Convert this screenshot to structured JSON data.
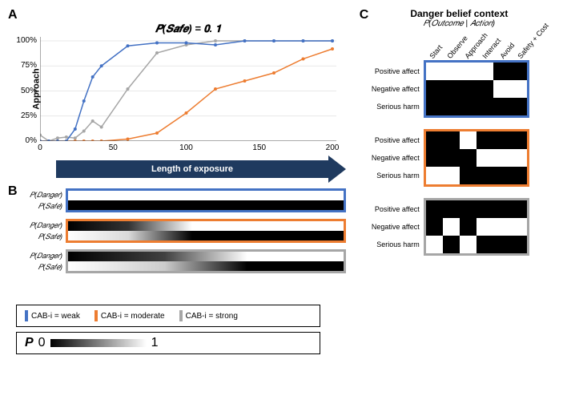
{
  "colors": {
    "weak": "#4472c4",
    "moderate": "#ed7d31",
    "strong": "#a6a6a6",
    "arrow": "#1f3a5f",
    "black": "#000000",
    "white": "#ffffff",
    "grid": "#e0e0e0"
  },
  "panelA": {
    "label": "A",
    "title": "P(Safe) = 0.1",
    "ylabel": "Approach",
    "xlim": [
      0,
      200
    ],
    "ylim": [
      0,
      100
    ],
    "yticks": [
      {
        "v": 0,
        "l": "0%"
      },
      {
        "v": 25,
        "l": "25%"
      },
      {
        "v": 50,
        "l": "50%"
      },
      {
        "v": 75,
        "l": "75%"
      },
      {
        "v": 100,
        "l": "100%"
      }
    ],
    "xticks": [
      {
        "v": 0,
        "l": "0"
      },
      {
        "v": 50,
        "l": "50"
      },
      {
        "v": 100,
        "l": "100"
      },
      {
        "v": 150,
        "l": "150"
      },
      {
        "v": 200,
        "l": "200"
      }
    ],
    "marker_radius": 2.0,
    "line_width": 1.5,
    "series": {
      "weak": {
        "x": [
          0,
          6,
          12,
          18,
          24,
          30,
          36,
          42,
          60,
          80,
          100,
          120,
          140,
          160,
          180,
          200
        ],
        "y": [
          0,
          0,
          0,
          0,
          12,
          40,
          64,
          75,
          95,
          98,
          98,
          96,
          100,
          100,
          100,
          100
        ]
      },
      "moderate": {
        "x": [
          0,
          6,
          12,
          18,
          24,
          30,
          36,
          42,
          60,
          80,
          100,
          120,
          140,
          160,
          180,
          200
        ],
        "y": [
          0,
          0,
          0,
          0,
          0,
          0,
          0,
          0,
          2,
          8,
          28,
          52,
          60,
          68,
          82,
          92
        ]
      },
      "strong": {
        "x": [
          0,
          6,
          12,
          18,
          24,
          30,
          36,
          42,
          60,
          80,
          100,
          120,
          140,
          160,
          180,
          200
        ],
        "y": [
          6,
          0,
          3,
          4,
          3,
          10,
          20,
          14,
          52,
          88,
          96,
          100,
          100,
          100,
          100,
          100
        ]
      }
    }
  },
  "arrow": {
    "text": "Length of exposure"
  },
  "panelB": {
    "label": "B",
    "rowLabels": [
      "P(Danger)",
      "P(Safe)"
    ],
    "groups": [
      {
        "border": "weak",
        "danger": {
          "type": "solid",
          "value": 1
        },
        "safe": {
          "type": "solid",
          "value": 0
        }
      },
      {
        "border": "moderate",
        "danger": {
          "type": "gradient",
          "stops": [
            [
              0,
              0
            ],
            [
              0.22,
              0.2
            ],
            [
              0.45,
              1
            ],
            [
              1,
              1
            ]
          ]
        },
        "safe": {
          "type": "gradient",
          "stops": [
            [
              0,
              1
            ],
            [
              0.22,
              0.85
            ],
            [
              0.45,
              0
            ],
            [
              1,
              0
            ]
          ]
        }
      },
      {
        "border": "strong",
        "danger": {
          "type": "gradient",
          "stops": [
            [
              0,
              0
            ],
            [
              0.35,
              0.25
            ],
            [
              0.65,
              1
            ],
            [
              1,
              1
            ]
          ]
        },
        "safe": {
          "type": "gradient",
          "stops": [
            [
              0,
              1
            ],
            [
              0.35,
              0.8
            ],
            [
              0.65,
              0
            ],
            [
              1,
              0
            ]
          ]
        }
      }
    ]
  },
  "legend": {
    "items": [
      {
        "color": "weak",
        "label": "CAB-i = weak"
      },
      {
        "color": "moderate",
        "label": "CAB-i = moderate"
      },
      {
        "color": "strong",
        "label": "CAB-i = strong"
      }
    ],
    "pLabel": "P",
    "pMin": "0",
    "pMax": "1"
  },
  "panelC": {
    "label": "C",
    "title_main": "Danger belief context",
    "title_sub": "P(Outcome | Action)",
    "col_labels": [
      "Start",
      "Observe",
      "Approach",
      "Interact",
      "Avoid",
      "Safety + Cost"
    ],
    "row_labels": [
      "Positive affect",
      "Negative affect",
      "Serious harm"
    ],
    "matrices": [
      {
        "border": "weak",
        "cells": [
          [
            1,
            1,
            1,
            1,
            0,
            0
          ],
          [
            0,
            0,
            0,
            0,
            1,
            1
          ],
          [
            0,
            0,
            0,
            0,
            0,
            0
          ]
        ]
      },
      {
        "border": "moderate",
        "cells": [
          [
            0,
            0,
            1,
            0,
            0,
            0
          ],
          [
            0,
            0,
            0,
            1,
            1,
            1
          ],
          [
            1,
            1,
            0,
            0,
            0,
            0
          ]
        ]
      },
      {
        "border": "strong",
        "cells": [
          [
            0,
            0,
            0,
            0,
            0,
            0
          ],
          [
            0,
            1,
            0,
            1,
            1,
            1
          ],
          [
            1,
            0,
            1,
            0,
            0,
            0
          ]
        ]
      }
    ]
  }
}
